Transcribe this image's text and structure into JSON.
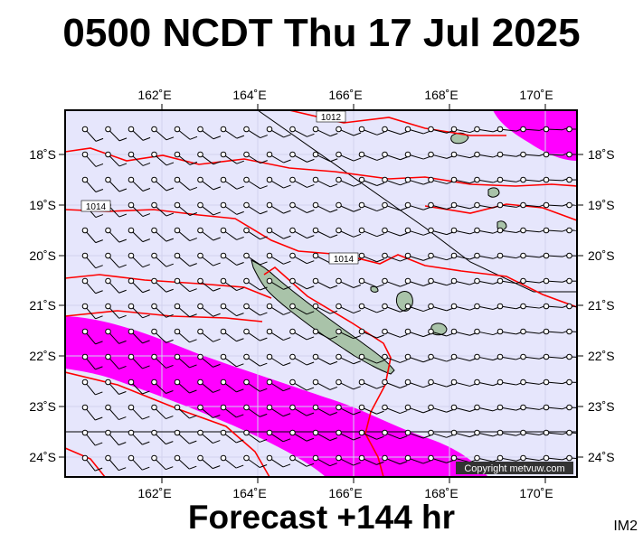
{
  "title": "0500 NCDT Thu 17 Jul 2025",
  "subtitle": "Forecast +144 hr",
  "code": "IM2",
  "copyright": "Copyright metvuw.com",
  "colors": {
    "ocean": "#e6e6fc",
    "high_wind": "#ff00ff",
    "isobar": "#ff0000",
    "land": "#a9c3a9",
    "frame": "#000000"
  },
  "axes": {
    "lon_labels": [
      "162˚E",
      "164˚E",
      "166˚E",
      "168˚E",
      "170˚E"
    ],
    "lat_labels": [
      "18˚S",
      "19˚S",
      "20˚S",
      "21˚S",
      "22˚S",
      "23˚S",
      "24˚S"
    ]
  },
  "isobars": {
    "labels": [
      "1012",
      "1014",
      "1014"
    ]
  }
}
